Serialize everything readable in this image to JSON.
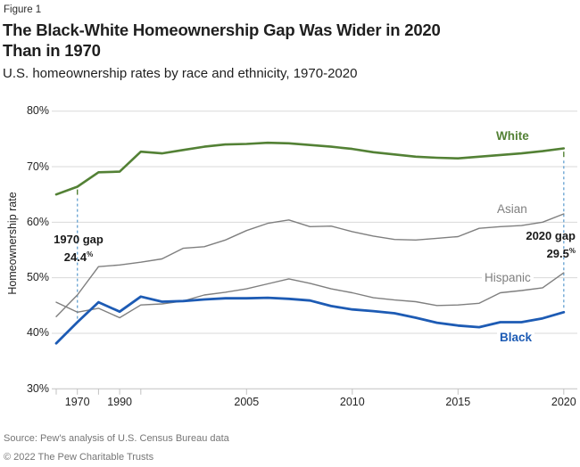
{
  "figure_label": "Figure 1",
  "title_line1": "The Black-White Homeownership Gap Was Wider in 2020",
  "title_line2": "Than in 1970",
  "subtitle": "U.S. homeownership rates by race and ethnicity, 1970-2020",
  "y_axis_title": "Homeownership rate",
  "series_labels": {
    "white": "White",
    "asian": "Asian",
    "hispanic": "Hispanic",
    "black": "Black"
  },
  "annotations": {
    "gap1970": {
      "label": "1970 gap",
      "value": "24.4",
      "unit": "%"
    },
    "gap2020": {
      "label": "2020 gap",
      "value": "29.5",
      "unit": "%"
    }
  },
  "footer": {
    "source": "Source: Pew's analysis of U.S. Census Bureau data",
    "copyright": "© 2022 The Pew Charitable Trusts"
  },
  "colors": {
    "white_line": "#538135",
    "black_line": "#1d5bb4",
    "gray_line": "#7f7f7f",
    "dashed": "#6fa7d4",
    "grid": "#d9d9d9",
    "axis": "#c2c2c2",
    "text": "#232323",
    "muted": "#757575"
  },
  "chart_data": {
    "type": "line",
    "title": "The Black-White Homeownership Gap Was Wider in 2020 Than in 1970",
    "subtitle": "U.S. homeownership rates by race and ethnicity, 1970-2020",
    "xlabel": "",
    "ylabel": "Homeownership rate",
    "ylim": [
      30,
      80
    ],
    "grid": "horizontal",
    "legend_position": "end-of-line-labels",
    "x_categories": [
      1960,
      1970,
      1980,
      1990,
      2000,
      2001,
      2002,
      2003,
      2004,
      2005,
      2006,
      2007,
      2008,
      2009,
      2010,
      2011,
      2012,
      2013,
      2014,
      2015,
      2016,
      2017,
      2018,
      2019,
      2020
    ],
    "series": [
      {
        "name": "White",
        "color_key": "white_line",
        "width": 2.6,
        "values": [
          65.0,
          66.4,
          69.0,
          69.1,
          72.7,
          72.4,
          73.0,
          73.6,
          74.0,
          74.1,
          74.3,
          74.2,
          73.9,
          73.6,
          73.2,
          72.6,
          72.2,
          71.8,
          71.6,
          71.5,
          71.8,
          72.1,
          72.4,
          72.8,
          73.3
        ]
      },
      {
        "name": "Asian",
        "color_key": "gray_line",
        "width": 1.4,
        "values": [
          43.0,
          46.9,
          52.0,
          52.3,
          52.8,
          53.4,
          55.3,
          55.6,
          56.8,
          58.5,
          59.8,
          60.4,
          59.2,
          59.3,
          58.3,
          57.5,
          56.9,
          56.8,
          57.1,
          57.4,
          58.9,
          59.2,
          59.4,
          60.0,
          61.5
        ]
      },
      {
        "name": "Hispanic",
        "color_key": "gray_line",
        "width": 1.4,
        "values": [
          45.6,
          43.8,
          44.5,
          42.8,
          45.1,
          45.3,
          45.8,
          46.9,
          47.4,
          48.0,
          48.9,
          49.8,
          49.0,
          48.0,
          47.3,
          46.4,
          46.0,
          45.7,
          45.0,
          45.1,
          45.4,
          47.3,
          47.7,
          48.2,
          50.9
        ]
      },
      {
        "name": "Black",
        "color_key": "black_line",
        "width": 2.8,
        "values": [
          38.2,
          42.0,
          45.6,
          43.9,
          46.6,
          45.7,
          45.8,
          46.1,
          46.3,
          46.3,
          46.4,
          46.2,
          45.9,
          44.9,
          44.3,
          44.0,
          43.6,
          42.8,
          41.9,
          41.4,
          41.1,
          42.0,
          42.0,
          42.7,
          43.8
        ]
      }
    ],
    "y_ticks": [
      {
        "value": 80,
        "label": "80%"
      },
      {
        "value": 70,
        "label": "70%"
      },
      {
        "value": 60,
        "label": "60%"
      },
      {
        "value": 50,
        "label": "50%"
      },
      {
        "value": 40,
        "label": "40%"
      },
      {
        "value": 30,
        "label": "30%"
      }
    ],
    "x_ticks": [
      {
        "year": 1960,
        "label": ""
      },
      {
        "year": 1970,
        "label": "1970"
      },
      {
        "year": 1980,
        "label": ""
      },
      {
        "year": 1990,
        "label": "1990"
      },
      {
        "year": 2000,
        "label": ""
      },
      {
        "year": 2005,
        "label": "2005"
      },
      {
        "year": 2010,
        "label": "2010"
      },
      {
        "year": 2015,
        "label": "2015"
      },
      {
        "year": 2020,
        "label": "2020"
      }
    ],
    "gap_lines": [
      {
        "year": 1970,
        "from_pct": 65.9,
        "to_pct": 42.3
      },
      {
        "year": 2020,
        "from_pct": 72.7,
        "to_pct": 44.2
      }
    ]
  }
}
